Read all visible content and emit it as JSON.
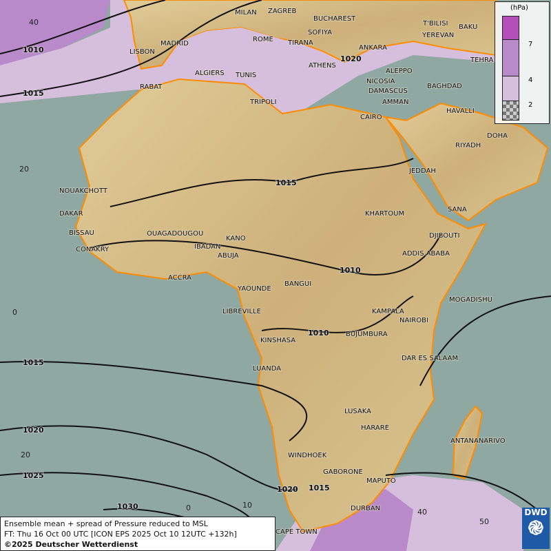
{
  "title": "Ensemble mean + spread of Pressure reduced to MSL",
  "forecast_time": "FT: Thu 16 Oct 00 UTC [ICON EPS 2025 Oct 10 12UTC +132h]",
  "copyright": "©2025 Deutscher Wetterdienst",
  "logo_text": "DWD",
  "legend": {
    "unit": "(hPa)",
    "ticks": [
      "7",
      "4",
      "2"
    ],
    "colors": [
      "#b44fba",
      "#b98ac9",
      "#d6bfdd",
      "checker"
    ]
  },
  "colors": {
    "ocean": "#8fa8a2",
    "land": "#d8c28c",
    "spread_low": "#d6bfdd",
    "spread_mid": "#b98ac9",
    "coast": "#ff8c00"
  },
  "isobar_labels": [
    "1010",
    "1015",
    "1015",
    "1010",
    "1010",
    "1015",
    "1020",
    "1025",
    "1030",
    "1020",
    "1015",
    "1020"
  ],
  "grid_labels": [
    "40",
    "20",
    "0",
    "20",
    "0",
    "10",
    "40",
    "50"
  ],
  "cities": [
    "MILAN",
    "ZAGREB",
    "BUCHAREST",
    "T'BILISI",
    "BAKU",
    "MADRID",
    "ROME",
    "SOFIYA",
    "YEREVAN",
    "LISBON",
    "TIRANA",
    "ANKARA",
    "TEHRA",
    "ALGIERS",
    "TUNIS",
    "ATHENS",
    "ALEPPO",
    "RABAT",
    "NICOSIA",
    "BAGHDAD",
    "DAMASCUS",
    "TRIPOLI",
    "AMMAN",
    "HAVALLI",
    "CAIRO",
    "DOHA",
    "RIYADH",
    "NOUAKCHOTT",
    "JEDDAH",
    "DAKAR",
    "KHARTOUM",
    "SANA",
    "BISSAU",
    "OUAGADOUGOU",
    "KANO",
    "DJIBOUTI",
    "CONAKRY",
    "ABUJA",
    "ADDIS ABABA",
    "IBADAN",
    "ACCRA",
    "YAOUNDE",
    "BANGUI",
    "MOGADISHU",
    "LIBREVILLE",
    "KAMPALA",
    "NAIROBI",
    "BUJUMBURA",
    "KINSHASA",
    "DAR ES SALAAM",
    "LUANDA",
    "LUSAKA",
    "HARARE",
    "ANTANANARIVO",
    "WINDHOEK",
    "GABORONE",
    "MAPUTO",
    "DURBAN",
    "CAPE TOWN"
  ]
}
